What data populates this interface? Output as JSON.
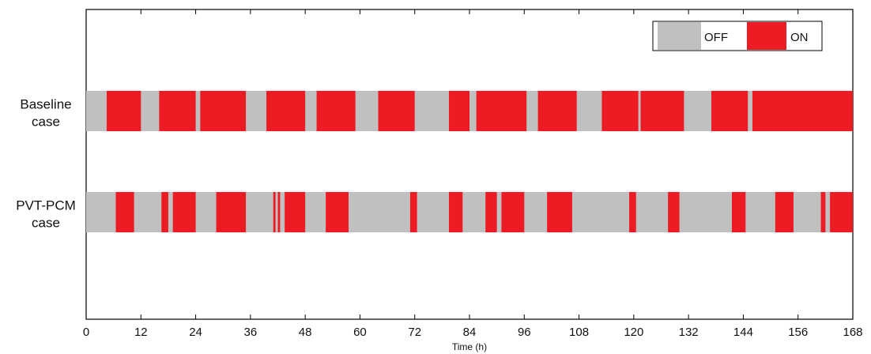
{
  "chart_data": {
    "type": "timeline",
    "xlabel": "Time (h)",
    "xlim": [
      0,
      168
    ],
    "xticks": [
      0,
      12,
      24,
      36,
      48,
      60,
      72,
      84,
      96,
      108,
      120,
      132,
      144,
      156,
      168
    ],
    "states": [
      {
        "name": "OFF",
        "color": "#c0c0c0"
      },
      {
        "name": "ON",
        "color": "#ed1c24"
      }
    ],
    "legend_position": "top-right",
    "rows": [
      {
        "label_lines": [
          "Baseline",
          "case"
        ],
        "on_intervals": [
          [
            4.5,
            12
          ],
          [
            16,
            24
          ],
          [
            25,
            35
          ],
          [
            39.5,
            48
          ],
          [
            50.5,
            59
          ],
          [
            64,
            72
          ],
          [
            79.5,
            84
          ],
          [
            85.5,
            96.5
          ],
          [
            99,
            107.5
          ],
          [
            113,
            121
          ],
          [
            121.5,
            131
          ],
          [
            137,
            145
          ],
          [
            146,
            168
          ]
        ]
      },
      {
        "label_lines": [
          "PVT-PCM",
          "case"
        ],
        "on_intervals": [
          [
            6.5,
            10.5
          ],
          [
            16.5,
            18
          ],
          [
            19,
            24
          ],
          [
            28.5,
            35
          ],
          [
            41,
            41.5
          ],
          [
            42,
            42.5
          ],
          [
            43.5,
            48
          ],
          [
            52.5,
            57.5
          ],
          [
            71,
            72.5
          ],
          [
            79.5,
            82.5
          ],
          [
            87.5,
            90
          ],
          [
            91,
            96
          ],
          [
            101,
            106.5
          ],
          [
            119,
            120.5
          ],
          [
            127.5,
            130
          ],
          [
            141.5,
            144.5
          ],
          [
            151,
            155
          ],
          [
            161,
            162
          ],
          [
            163,
            168
          ]
        ]
      }
    ]
  }
}
